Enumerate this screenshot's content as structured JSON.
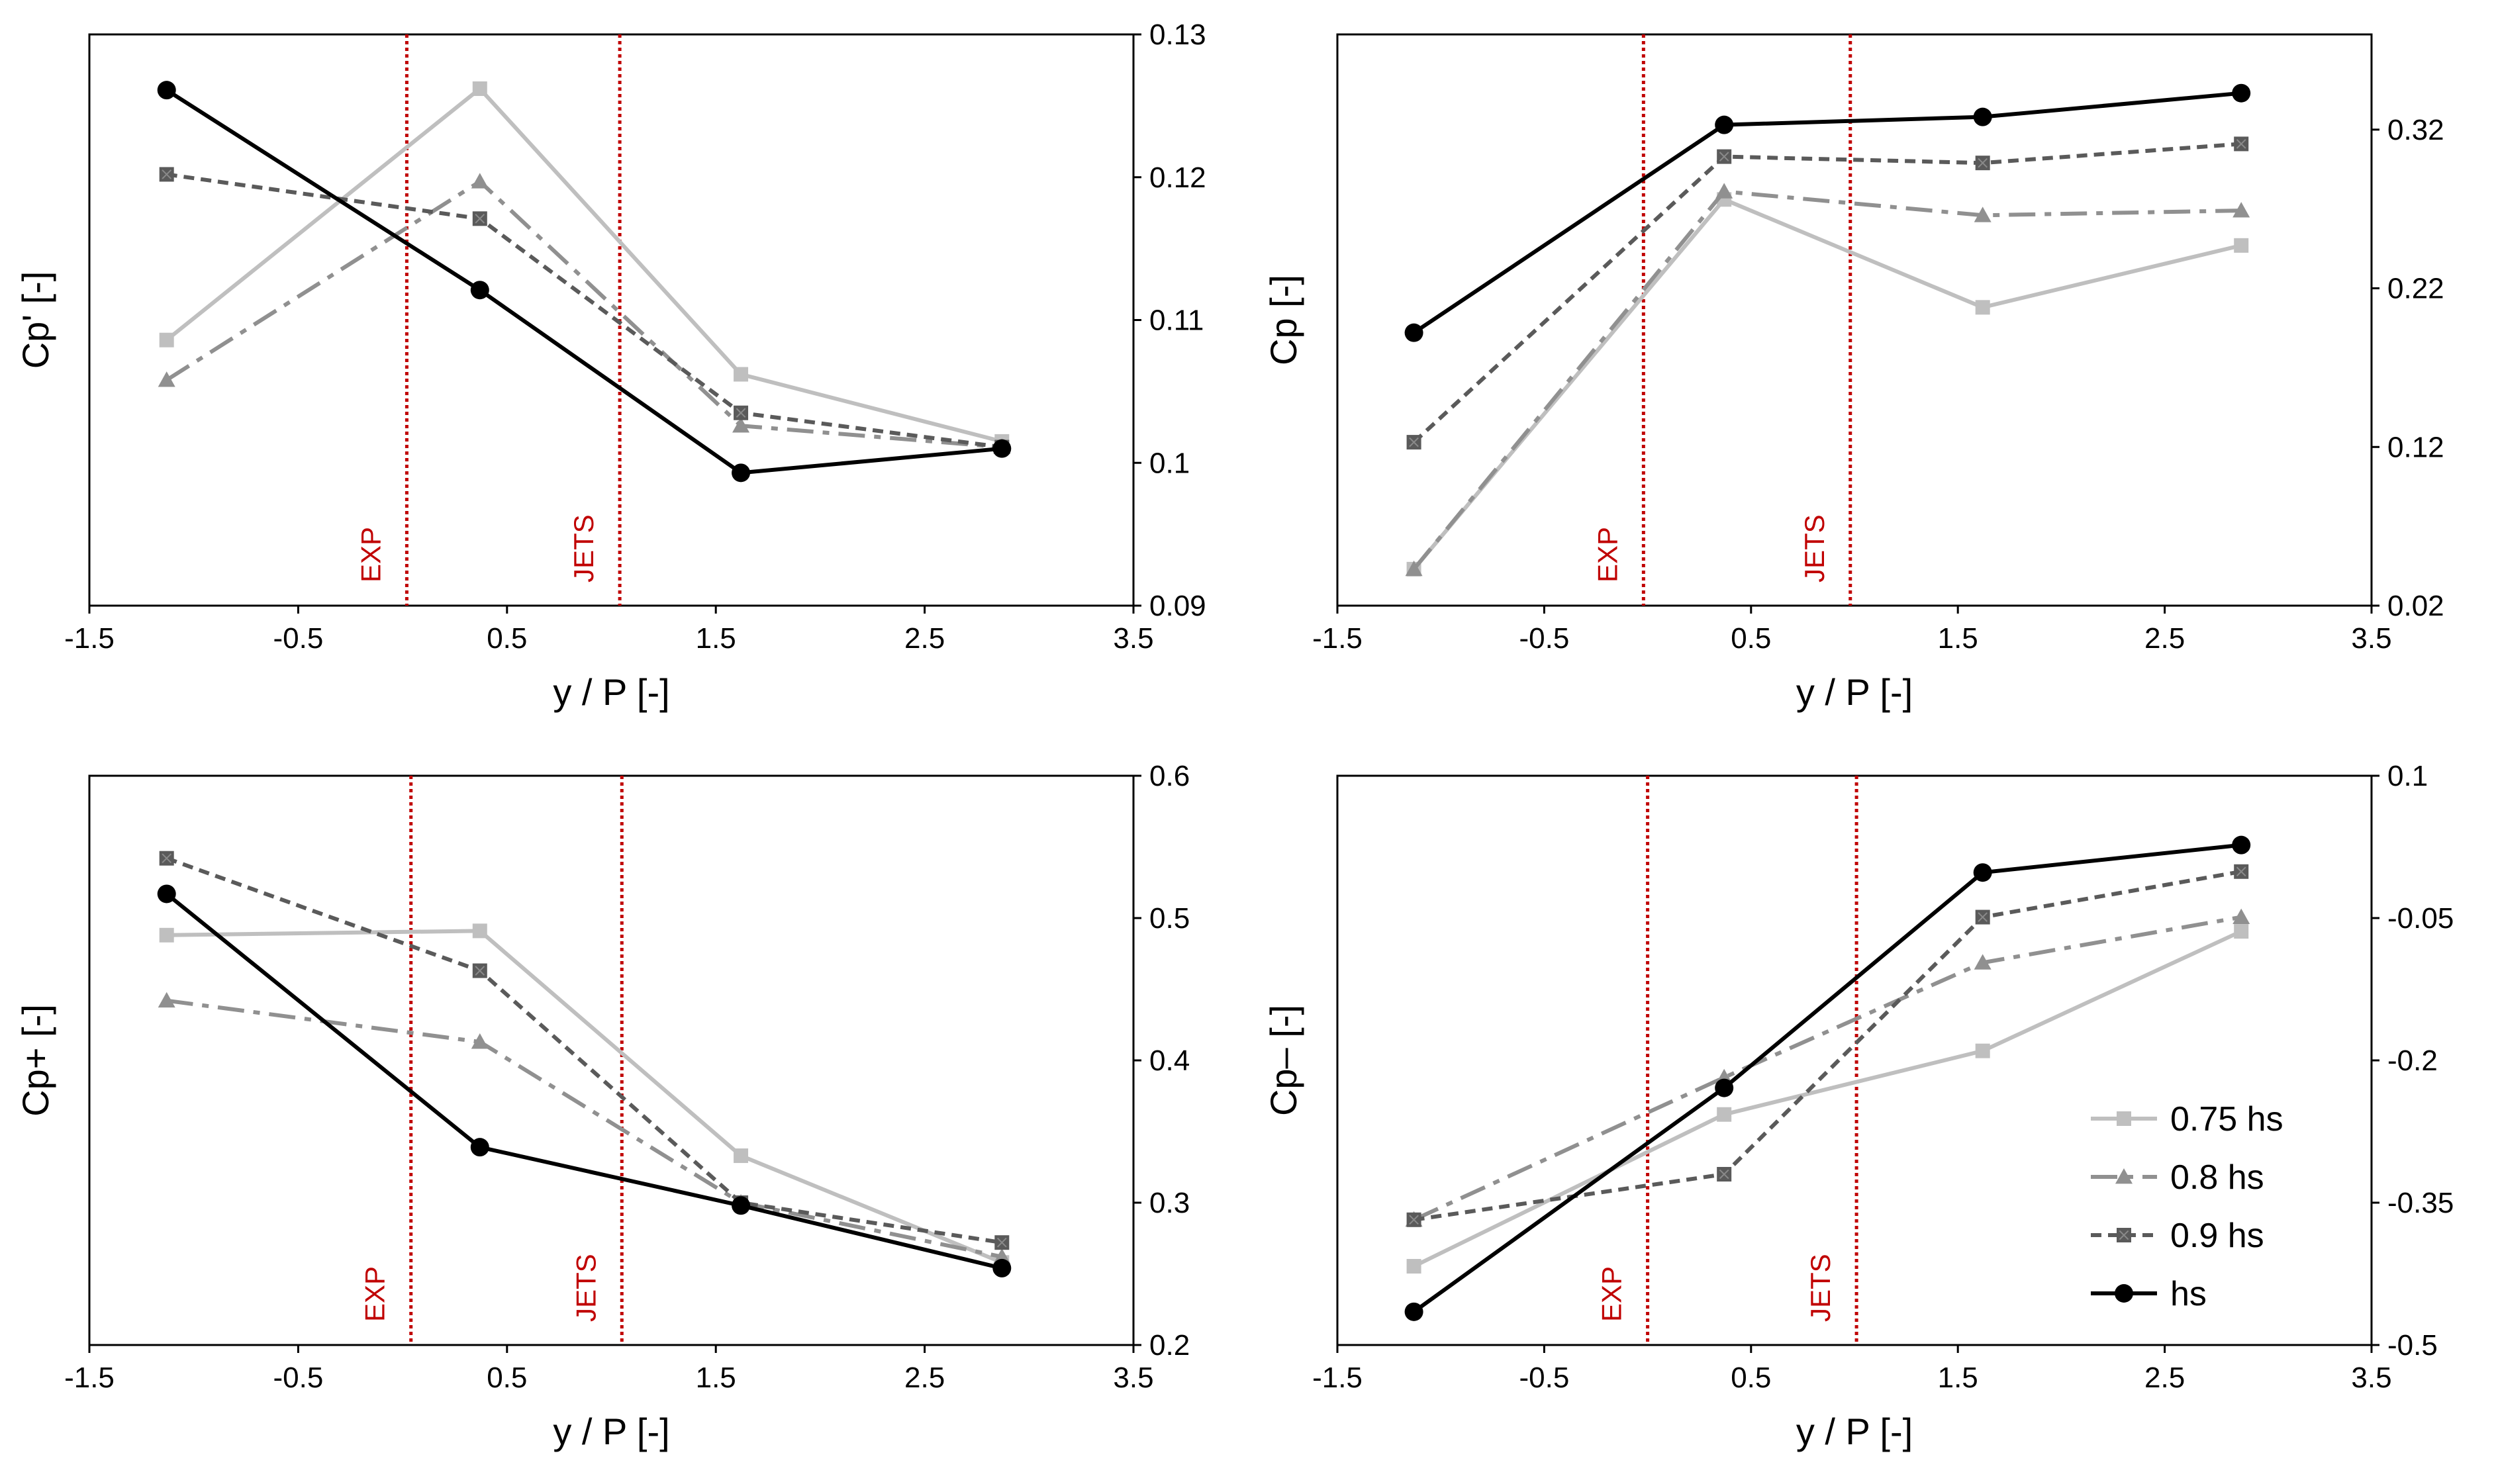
{
  "chart_data": [
    {
      "type": "line",
      "panel": "top-left",
      "ylabel": "Cp' [-]",
      "xlabel": "y / P [-]",
      "xlim": [
        -1.5,
        3.5
      ],
      "ylim": [
        0.09,
        0.13
      ],
      "xticks": [
        "-1.5",
        "-0.5",
        "0.5",
        "1.5",
        "2.5",
        "3.5"
      ],
      "yticks": [
        "0.09",
        "0.1",
        "0.11",
        "0.12",
        "0.13"
      ],
      "markers": [
        {
          "label": "EXP",
          "x": 0.02
        },
        {
          "label": "JETS",
          "x": 1.04
        }
      ],
      "x": [
        -1.13,
        0.37,
        1.62,
        2.87
      ],
      "series": [
        {
          "name": "0.75 hs",
          "values": [
            0.1086,
            0.1262,
            0.1062,
            0.1015
          ]
        },
        {
          "name": "0.8 hs",
          "values": [
            0.1058,
            0.1197,
            0.1026,
            0.1011
          ]
        },
        {
          "name": "0.9 hs",
          "values": [
            0.1202,
            0.1171,
            0.1035,
            0.1011
          ]
        },
        {
          "name": "hs",
          "values": [
            0.1261,
            0.1121,
            0.0993,
            0.101
          ]
        }
      ]
    },
    {
      "type": "line",
      "panel": "top-right",
      "ylabel": "Cp [-]",
      "xlabel": "y / P [-]",
      "xlim": [
        -1.5,
        3.5
      ],
      "ylim": [
        0.02,
        0.38
      ],
      "xticks": [
        "-1.5",
        "-0.5",
        "0.5",
        "1.5",
        "2.5",
        "3.5"
      ],
      "yticks": [
        "0.02",
        "0.12",
        "0.22",
        "0.32"
      ],
      "markers": [
        {
          "label": "EXP",
          "x": -0.02
        },
        {
          "label": "JETS",
          "x": 0.98
        }
      ],
      "x": [
        -1.13,
        0.37,
        1.62,
        2.87
      ],
      "series": [
        {
          "name": "0.75 hs",
          "values": [
            0.043,
            0.276,
            0.208,
            0.247
          ]
        },
        {
          "name": "0.8 hs",
          "values": [
            0.043,
            0.281,
            0.266,
            0.269
          ]
        },
        {
          "name": "0.9 hs",
          "values": [
            0.123,
            0.303,
            0.299,
            0.311
          ]
        },
        {
          "name": "hs",
          "values": [
            0.192,
            0.323,
            0.328,
            0.343
          ]
        }
      ]
    },
    {
      "type": "line",
      "panel": "bottom-left",
      "ylabel": "Cp+ [-]",
      "xlabel": "y / P [-]",
      "xlim": [
        -1.5,
        3.5
      ],
      "ylim": [
        0.2,
        0.6
      ],
      "xticks": [
        "-1.5",
        "-0.5",
        "0.5",
        "1.5",
        "2.5",
        "3.5"
      ],
      "yticks": [
        "0.2",
        "0.3",
        "0.4",
        "0.5",
        "0.6"
      ],
      "markers": [
        {
          "label": "EXP",
          "x": 0.04
        },
        {
          "label": "JETS",
          "x": 1.05
        }
      ],
      "x": [
        -1.13,
        0.37,
        1.62,
        2.87
      ],
      "series": [
        {
          "name": "0.75 hs",
          "values": [
            0.488,
            0.491,
            0.333,
            0.258
          ]
        },
        {
          "name": "0.8 hs",
          "values": [
            0.442,
            0.413,
            0.3,
            0.262
          ]
        },
        {
          "name": "0.9 hs",
          "values": [
            0.542,
            0.463,
            0.3,
            0.272
          ]
        },
        {
          "name": "hs",
          "values": [
            0.517,
            0.339,
            0.298,
            0.254
          ]
        }
      ]
    },
    {
      "type": "line",
      "panel": "bottom-right",
      "ylabel": "Cp– [-]",
      "xlabel": "y / P [-]",
      "xlim": [
        -1.5,
        3.5
      ],
      "ylim": [
        -0.5,
        0.1
      ],
      "xticks": [
        "-1.5",
        "-0.5",
        "0.5",
        "1.5",
        "2.5",
        "3.5"
      ],
      "yticks": [
        "-0.5",
        "-0.35",
        "-0.2",
        "-0.05",
        "0.1"
      ],
      "markers": [
        {
          "label": "EXP",
          "x": 0.0
        },
        {
          "label": "JETS",
          "x": 1.01
        }
      ],
      "x": [
        -1.13,
        0.37,
        1.62,
        2.87
      ],
      "series": [
        {
          "name": "0.75 hs",
          "values": [
            -0.417,
            -0.257,
            -0.19,
            -0.064
          ]
        },
        {
          "name": "0.8 hs",
          "values": [
            -0.368,
            -0.218,
            -0.097,
            -0.049
          ]
        },
        {
          "name": "0.9 hs",
          "values": [
            -0.368,
            -0.32,
            -0.049,
            -0.001
          ]
        },
        {
          "name": "hs",
          "values": [
            -0.465,
            -0.229,
            -0.002,
            0.027
          ]
        }
      ]
    }
  ],
  "legend": {
    "entries": [
      "0.75 hs",
      "0.8 hs",
      "0.9 hs",
      "hs"
    ]
  },
  "colors": {
    "0.75 hs": "#bfbfbf",
    "0.8 hs": "#909090",
    "0.9 hs": "#5a5a5a",
    "hs": "#000000",
    "marker_line": "#c00000"
  }
}
